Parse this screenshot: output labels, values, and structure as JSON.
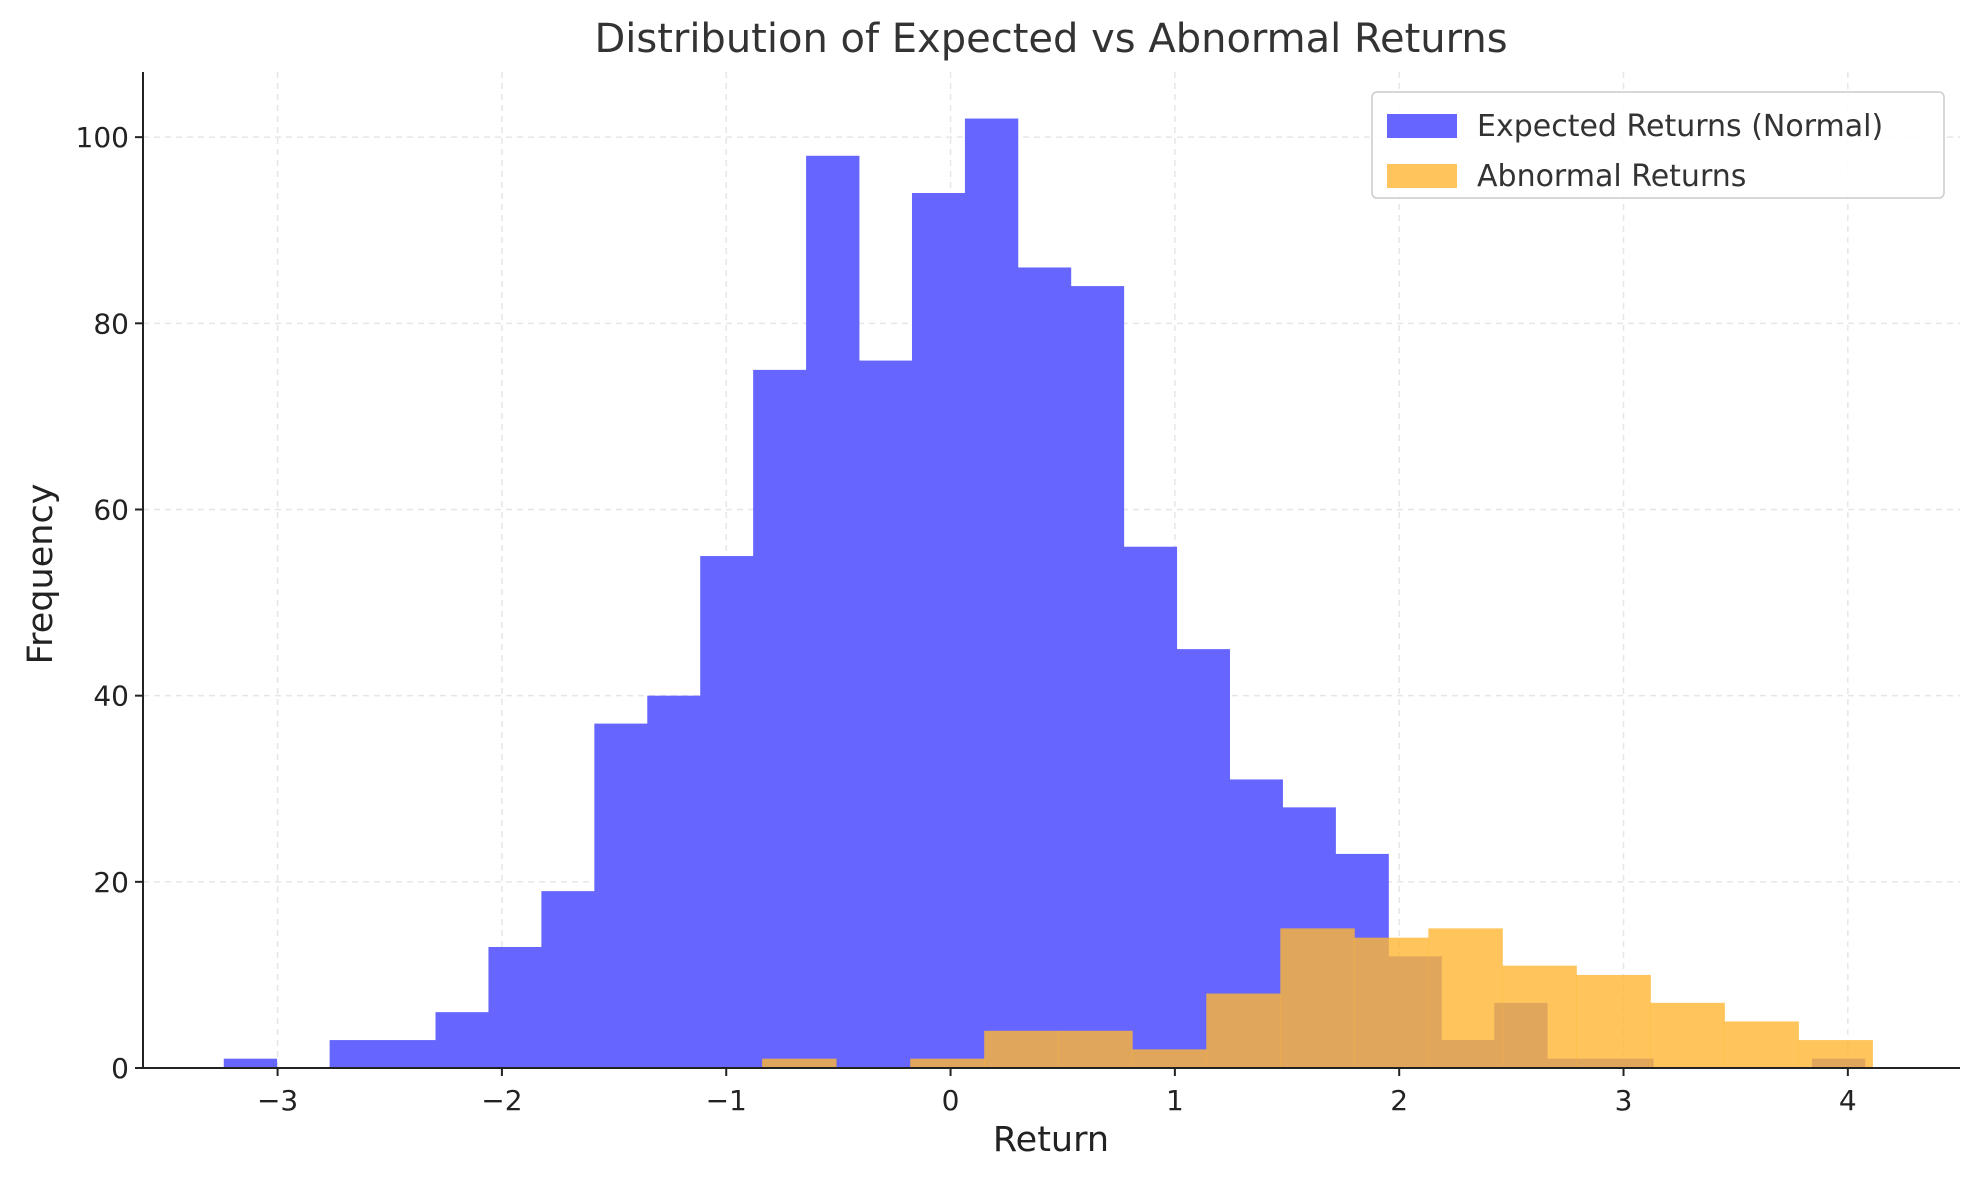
{
  "chart_data": {
    "type": "histogram",
    "title": "Distribution of Expected vs Abnormal Returns",
    "xlabel": "Return",
    "ylabel": "Frequency",
    "xlim": [
      -3.6,
      4.5
    ],
    "ylim": [
      0,
      107
    ],
    "xticks": [
      -3,
      -2,
      -1,
      0,
      1,
      2,
      3,
      4
    ],
    "xtick_labels": [
      "−3",
      "−2",
      "−1",
      "0",
      "1",
      "2",
      "3",
      "4"
    ],
    "yticks": [
      0,
      20,
      40,
      60,
      80,
      100
    ],
    "ytick_labels": [
      "0",
      "20",
      "40",
      "60",
      "80",
      "100"
    ],
    "grid": true,
    "legend_position": "top-right",
    "series": [
      {
        "name": "Expected Returns (Normal)",
        "color": "#6666ff",
        "bin_start": -3.24,
        "bin_width": 0.236,
        "counts": [
          1,
          0,
          3,
          3,
          6,
          13,
          19,
          37,
          40,
          55,
          75,
          98,
          76,
          94,
          102,
          86,
          84,
          56,
          45,
          31,
          28,
          23,
          12,
          3,
          7,
          1,
          1,
          0,
          0,
          0,
          1
        ]
      },
      {
        "name": "Abnormal Returns",
        "color": "#ffb733",
        "bin_start": -0.84,
        "bin_width": 0.33,
        "counts": [
          1,
          0,
          1,
          4,
          4,
          2,
          8,
          15,
          14,
          15,
          11,
          10,
          7,
          5,
          3
        ]
      }
    ]
  }
}
